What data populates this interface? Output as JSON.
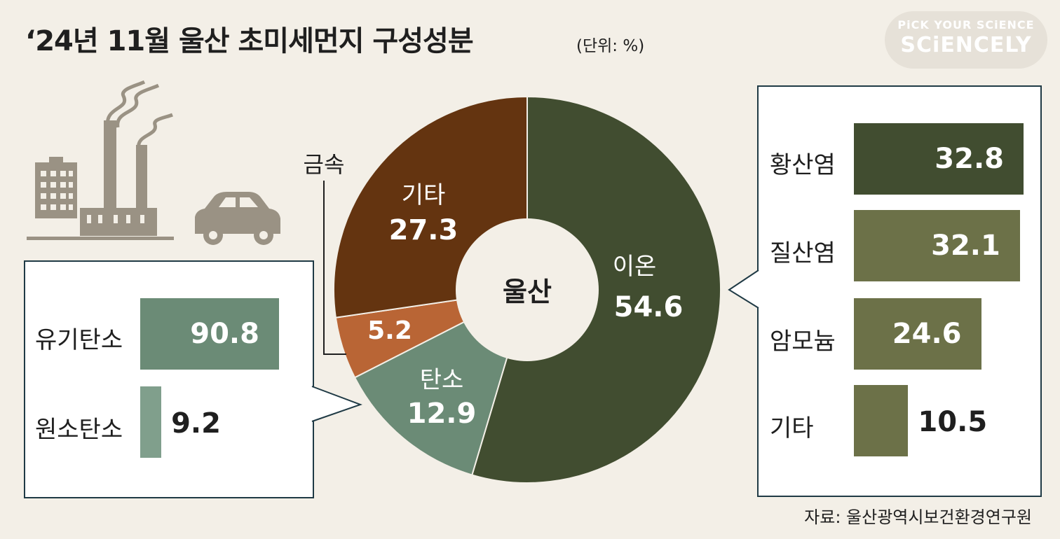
{
  "header": {
    "title": "‘24년 11월 울산 초미세먼지 구성성분",
    "unit": "(단위: %)"
  },
  "logo": {
    "line1": "PiCK YOUR SCiENCE",
    "line2": "SCiENCELY"
  },
  "colors": {
    "ion": "#414d30",
    "carbon": "#6b8b76",
    "metal": "#b96535",
    "other": "#643410",
    "ion_sub_dark": "#414d30",
    "ion_sub": "#6c7148",
    "carbon_sub": "#6b8b76",
    "carbon_sub_light": "#809f8c"
  },
  "chart_data": [
    {
      "type": "pie",
      "center_label": "울산",
      "slices": [
        {
          "label": "이온",
          "value": 54.6
        },
        {
          "label": "탄소",
          "value": 12.9
        },
        {
          "label": "금속",
          "value": 5.2
        },
        {
          "label": "기타",
          "value": 27.3
        }
      ]
    },
    {
      "type": "bar",
      "orientation": "horizontal",
      "parent": "탄소",
      "categories": [
        "유기탄소",
        "원소탄소"
      ],
      "values": [
        90.8,
        9.2
      ]
    },
    {
      "type": "bar",
      "orientation": "horizontal",
      "parent": "이온",
      "categories": [
        "황산염",
        "질산염",
        "암모늄",
        "기타"
      ],
      "values": [
        32.8,
        32.1,
        24.6,
        10.5
      ]
    }
  ],
  "source": "자료: 울산광역시보건환경연구원"
}
